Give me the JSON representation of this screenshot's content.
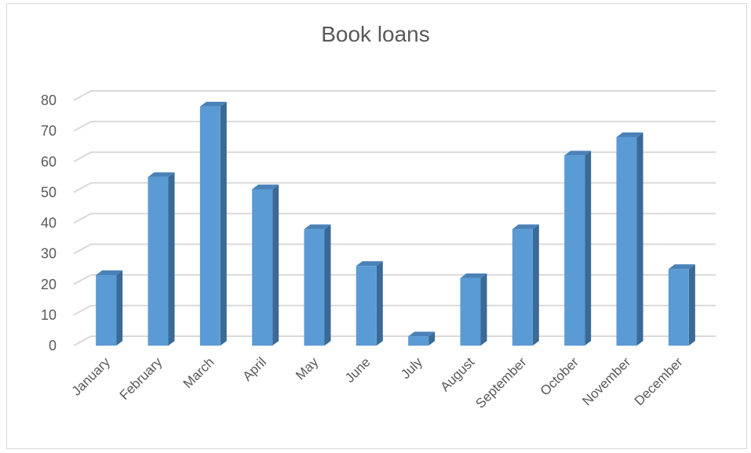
{
  "chart_data": {
    "type": "bar",
    "title": "Book loans",
    "categories": [
      "January",
      "February",
      "March",
      "April",
      "May",
      "June",
      "July",
      "August",
      "September",
      "October",
      "November",
      "December"
    ],
    "values": [
      23,
      55,
      78,
      51,
      38,
      26,
      3,
      22,
      38,
      62,
      68,
      25
    ],
    "ylim": [
      0,
      80
    ],
    "yticks": [
      0,
      10,
      20,
      30,
      40,
      50,
      60,
      70,
      80
    ],
    "grid": true,
    "legend": "none",
    "style": "3d-column",
    "colors": {
      "bar_front": "#5b9bd5",
      "bar_side": "#3a6a96",
      "bar_top": "#4a82b8",
      "grid": "#d9d9d9",
      "text": "#595959"
    }
  }
}
